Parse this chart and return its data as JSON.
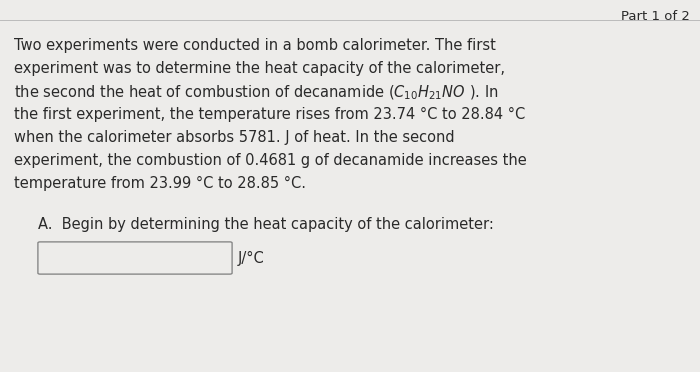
{
  "background_color": "#edecea",
  "part_label": "Part 1 of 2",
  "paragraph_lines": [
    "Two experiments were conducted in a bomb calorimeter. The first",
    "experiment was to determine the heat capacity of the calorimeter,",
    "FORMULA_LINE",
    "the first experiment, the temperature rises from 23.74 °C to 28.84 °C",
    "when the calorimeter absorbs 5781. J of heat. In the second",
    "experiment, the combustion of 0.4681 g of decanamide increases the",
    "temperature from 23.99 °C to 28.85 °C."
  ],
  "formula_line_before": "the second the heat of combustion of decanamide (",
  "formula_line_formula": "$C_{10}H_{21}NO$",
  "formula_line_after": " ). In",
  "question_label": "A.  Begin by determining the heat capacity of the calorimeter:",
  "unit_label": "J/°C",
  "divider_color": "#bbbbbb",
  "text_color": "#2a2a2a",
  "part_color": "#2a2a2a",
  "font_size_body": 10.5,
  "font_size_part": 9.5,
  "font_size_question": 10.5,
  "font_size_unit": 10.5
}
